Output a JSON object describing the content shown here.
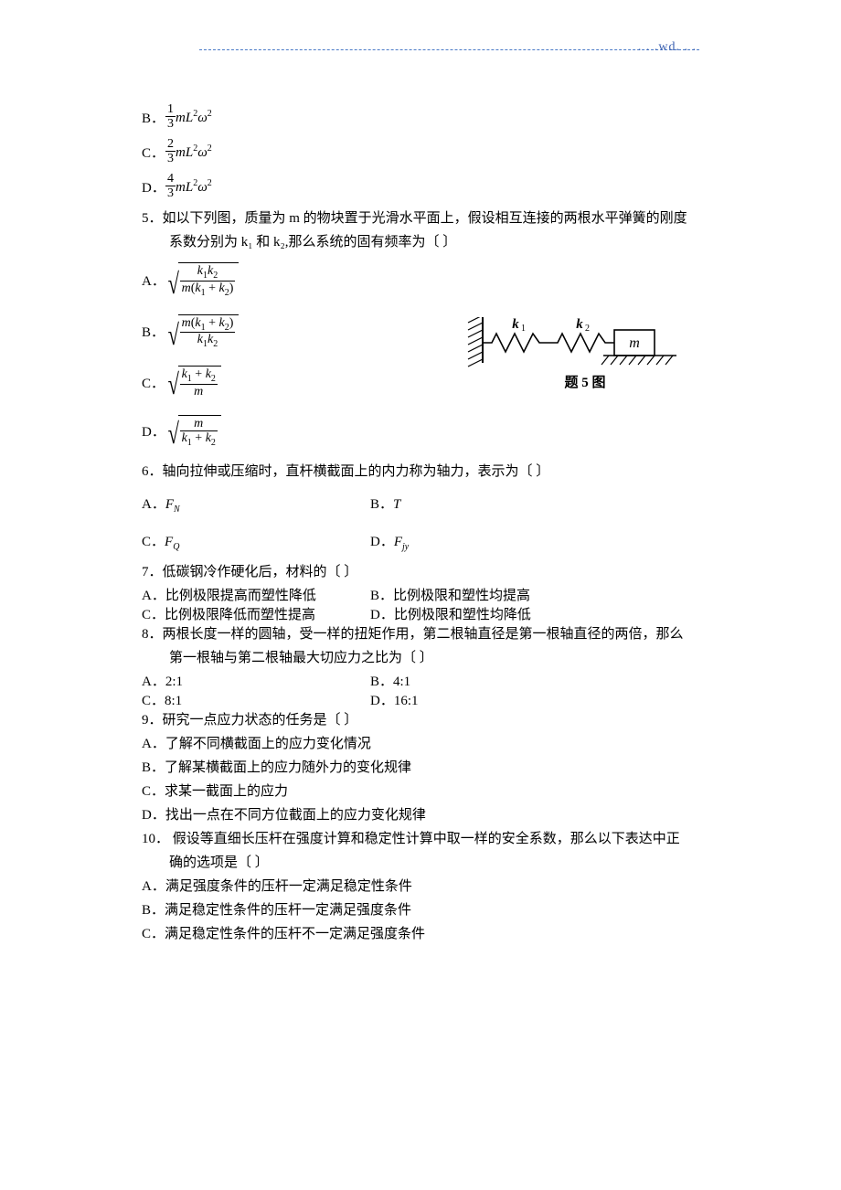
{
  "header": {
    "wd": ". . .wd. . ."
  },
  "q4opts": {
    "B": {
      "coef_num": "1",
      "coef_den": "3",
      "expr_html": "<span class='ital'>mL</span><span class='sup'>2</span><span class='ital'>ω</span><span class='sup'>2</span>"
    },
    "C": {
      "coef_num": "2",
      "coef_den": "3",
      "expr_html": "<span class='ital'>mL</span><span class='sup'>2</span><span class='ital'>ω</span><span class='sup'>2</span>"
    },
    "D": {
      "coef_num": "4",
      "coef_den": "3",
      "expr_html": "<span class='ital'>mL</span><span class='sup'>2</span><span class='ital'>ω</span><span class='sup'>2</span>"
    }
  },
  "q5": {
    "stem1": "5．如以下列图，质量为 m 的物块置于光滑水平面上，假设相互连接的两根水平弹簧的刚度",
    "stem2": "系数分别为 k₁ 和 k₂,那么系统的固有频率为〔          〕",
    "opts": {
      "A": {
        "num": "<span class='ital'>k</span><span class='sub'>1</span><span class='ital'>k</span><span class='sub'>2</span>",
        "den": "<span class='ital'>m</span>(<span class='ital'>k</span><span class='sub'>1</span> + <span class='ital'>k</span><span class='sub'>2</span>)"
      },
      "B": {
        "num": "<span class='ital'>m</span>(<span class='ital'>k</span><span class='sub'>1</span> + <span class='ital'>k</span><span class='sub'>2</span>)",
        "den": "<span class='ital'>k</span><span class='sub'>1</span><span class='ital'>k</span><span class='sub'>2</span>"
      },
      "C": {
        "num": "<span class='ital'>k</span><span class='sub'>1</span> + <span class='ital'>k</span><span class='sub'>2</span>",
        "den": "<span class='ital'>m</span>"
      },
      "D": {
        "num": "<span class='ital'>m</span>",
        "den": "<span class='ital'>k</span><span class='sub'>1</span> + <span class='ital'>k</span><span class='sub'>2</span>"
      }
    },
    "diagram": {
      "k1": "k₁",
      "k2": "k₂",
      "m": "m",
      "caption": "题 5 图"
    }
  },
  "q6": {
    "stem": "6．轴向拉伸或压缩时，直杆横截面上的内力称为轴力，表示为〔        〕",
    "A": "F<sub style='font-size:10px'>N</sub>",
    "B": "T",
    "C": "F<sub style='font-size:10px'>Q</sub>",
    "D": "F<sub style='font-size:10px'>jy</sub>"
  },
  "q7": {
    "stem": "7．低碳钢冷作硬化后，材料的〔          〕",
    "A": "A．比例极限提高而塑性降低",
    "B": "B．比例极限和塑性均提高",
    "C": "C．比例极限降低而塑性提高",
    "D": "D．比例极限和塑性均降低"
  },
  "q8": {
    "stem1": "8．两根长度一样的圆轴，受一样的扭矩作用，第二根轴直径是第一根轴直径的两倍，那么",
    "stem2": "第一根轴与第二根轴最大切应力之比为〔          〕",
    "A": "A．2:1",
    "B": "B．4:1",
    "C": "C．8:1",
    "D": "D．16:1"
  },
  "q9": {
    "stem": "9．研究一点应力状态的任务是〔          〕",
    "A": "A．了解不同横截面上的应力变化情况",
    "B": "B．了解某横截面上的应力随外力的变化规律",
    "C": "C．求某一截面上的应力",
    "D": "D．找出一点在不同方位截面上的应力变化规律"
  },
  "q10": {
    "stem1": "10．  假设等直细长压杆在强度计算和稳定性计算中取一样的安全系数，那么以下表达中正",
    "stem2": "确的选项是〔            〕",
    "A": "A．满足强度条件的压杆一定满足稳定性条件",
    "B": "B．满足稳定性条件的压杆一定满足强度条件",
    "C": "C．满足稳定性条件的压杆不一定满足强度条件"
  }
}
